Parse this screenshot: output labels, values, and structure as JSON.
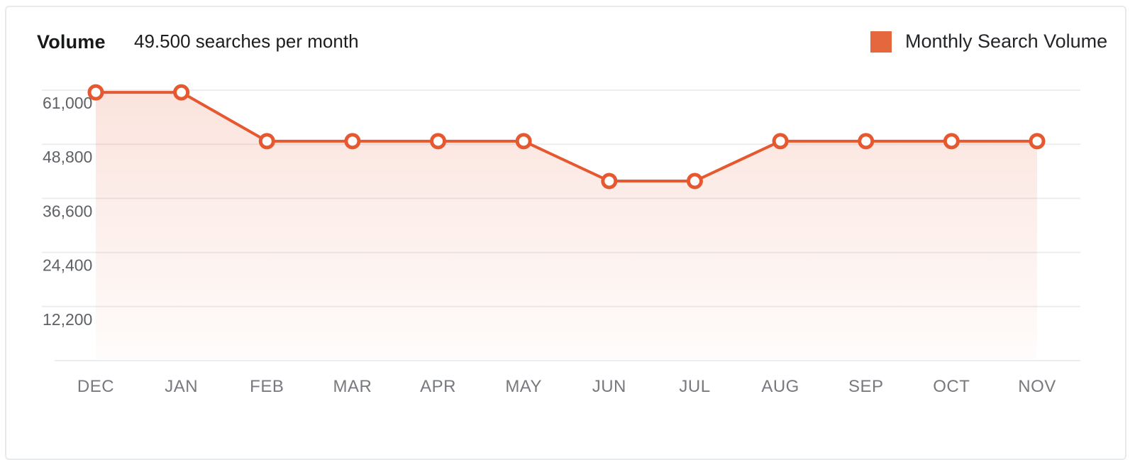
{
  "header": {
    "title": "Volume",
    "subtitle": "49.500 searches per month"
  },
  "legend": {
    "label": "Monthly Search Volume",
    "swatch_color": "#e4673d"
  },
  "chart_data": {
    "type": "area",
    "title": "Volume",
    "subtitle": "49.500 searches per month",
    "categories": [
      "DEC",
      "JAN",
      "FEB",
      "MAR",
      "APR",
      "MAY",
      "JUN",
      "JUL",
      "AUG",
      "SEP",
      "OCT",
      "NOV"
    ],
    "series": [
      {
        "name": "Monthly Search Volume",
        "values": [
          60500,
          60500,
          49500,
          49500,
          49500,
          49500,
          40500,
          40500,
          49500,
          49500,
          49500,
          49500
        ]
      }
    ],
    "yticks": [
      {
        "value": 61000,
        "label": "61,000"
      },
      {
        "value": 48800,
        "label": "48,800"
      },
      {
        "value": 36600,
        "label": "36,600"
      },
      {
        "value": 24400,
        "label": "24,400"
      },
      {
        "value": 12200,
        "label": "12,200"
      }
    ],
    "ylim": [
      0,
      65000
    ],
    "grid": "horizontal",
    "legend_position": "top-right",
    "xlabel": "",
    "ylabel": "",
    "colors": {
      "line": "#e6582f",
      "marker_fill": "#ffffff",
      "area_gradient_top": "rgba(230, 90, 52, 0.17)",
      "area_gradient_bottom": "rgba(230, 90, 52, 0.02)",
      "gridline": "#ecedf0",
      "ytick_text": "#5e6166",
      "xtick_text": "#76797e"
    }
  }
}
